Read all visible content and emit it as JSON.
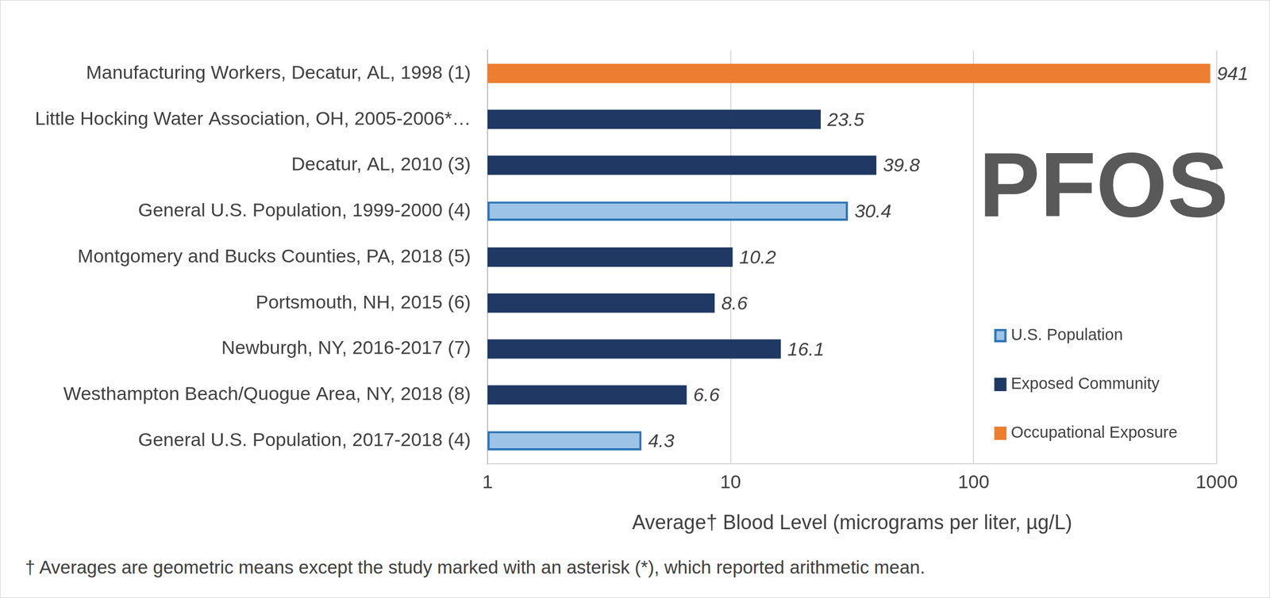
{
  "chart_data": {
    "type": "bar",
    "orientation": "horizontal",
    "categories": [
      "Manufacturing Workers, Decatur, AL, 1998 (1)",
      "Little Hocking Water Association, OH, 2005-2006*…",
      "Decatur, AL, 2010 (3)",
      "General U.S. Population, 1999-2000 (4)",
      "Montgomery and Bucks Counties, PA, 2018 (5)",
      "Portsmouth, NH, 2015 (6)",
      "Newburgh, NY, 2016-2017 (7)",
      "Westhampton Beach/Quogue Area, NY, 2018 (8)",
      "General U.S. Population, 2017-2018 (4)"
    ],
    "series": [
      {
        "name": "U.S. Population",
        "color": "#9dc3e6",
        "values": [
          null,
          null,
          null,
          30.4,
          null,
          null,
          null,
          null,
          4.3
        ]
      },
      {
        "name": "Exposed Community",
        "color": "#1f3864",
        "values": [
          null,
          23.5,
          39.8,
          null,
          10.2,
          8.6,
          16.1,
          6.6,
          null
        ]
      },
      {
        "name": "Occupational Exposure",
        "color": "#ed7d31",
        "values": [
          941,
          null,
          null,
          null,
          null,
          null,
          null,
          null,
          null
        ]
      }
    ],
    "x_label": "Average† Blood Level (micrograms per liter, µg/L)",
    "xlim": [
      1,
      1000
    ],
    "xticks": [
      1,
      10,
      100,
      1000
    ],
    "log": "x",
    "grid": true,
    "data_labels": true,
    "legend": "right",
    "annotations": [
      "PFOS"
    ],
    "footnote": "† Averages are geometric means except the study marked with an asterisk (*), which reported arithmetic mean."
  }
}
